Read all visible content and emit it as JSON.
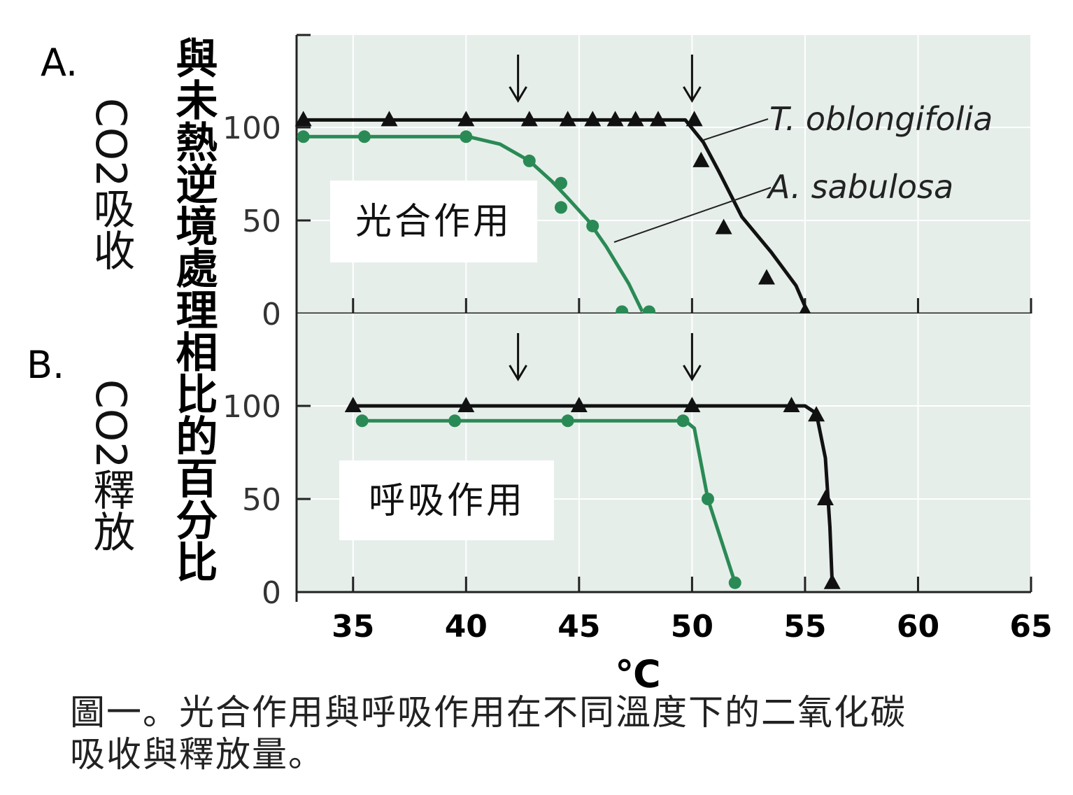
{
  "labels": {
    "panel_a": "A.",
    "panel_b": "B.",
    "ylabel_a": "CO2吸收",
    "ylabel_b": "CO2釋放",
    "ylabel_main": "與未熱逆境處理相比的百分比",
    "xlabel": "℃",
    "box_a": "光合作用",
    "box_b": "呼吸作用",
    "series_t": "T. oblongifolia",
    "series_a": "A. sabulosa"
  },
  "caption": {
    "line1": "圖一。光合作用與呼吸作用在不同溫度下的二氧化碳",
    "line2": "吸收與釋放量。"
  },
  "colors": {
    "plot_bg": "#e6eeea",
    "grid": "#ffffff",
    "black_series": "#111111",
    "green_series": "#2a8a55"
  },
  "chart_data": [
    {
      "type": "line",
      "panel": "A",
      "xlim": [
        32.5,
        65
      ],
      "ylim": [
        0,
        150
      ],
      "xticks": [
        35,
        40,
        45,
        50,
        55,
        60,
        65
      ],
      "yticks": [
        0,
        50,
        100
      ],
      "arrows_x": [
        42.3,
        50
      ],
      "series": [
        {
          "name": "T. oblongifolia",
          "marker": "triangle",
          "line": [
            [
              32.8,
              104
            ],
            [
              49.7,
              104
            ],
            [
              50.5,
              92
            ],
            [
              51.2,
              76
            ],
            [
              52.2,
              52
            ],
            [
              53.5,
              33
            ],
            [
              54.6,
              15
            ],
            [
              55.1,
              1
            ]
          ],
          "points": [
            [
              32.8,
              104
            ],
            [
              36.6,
              104
            ],
            [
              40,
              104
            ],
            [
              42.8,
              104
            ],
            [
              44.5,
              104
            ],
            [
              45.6,
              104
            ],
            [
              46.6,
              104
            ],
            [
              47.5,
              104
            ],
            [
              48.5,
              104
            ],
            [
              50.1,
              104
            ],
            [
              50.4,
              82
            ],
            [
              51.4,
              46
            ],
            [
              53.3,
              19
            ],
            [
              55.0,
              1
            ]
          ]
        },
        {
          "name": "A. sabulosa",
          "marker": "circle",
          "line": [
            [
              32.8,
              95
            ],
            [
              40.1,
              95
            ],
            [
              41.5,
              91
            ],
            [
              42.8,
              82
            ],
            [
              43.8,
              71
            ],
            [
              44.5,
              62
            ],
            [
              45.4,
              50
            ],
            [
              46.2,
              36
            ],
            [
              47.2,
              16
            ],
            [
              47.8,
              1
            ]
          ],
          "points": [
            [
              32.8,
              95
            ],
            [
              35.5,
              95
            ],
            [
              40,
              95
            ],
            [
              42.8,
              82
            ],
            [
              44.2,
              70
            ],
            [
              44.2,
              57
            ],
            [
              45.6,
              47
            ],
            [
              46.9,
              1
            ],
            [
              48.1,
              1
            ]
          ]
        }
      ]
    },
    {
      "type": "line",
      "panel": "B",
      "xlim": [
        32.5,
        65
      ],
      "ylim": [
        0,
        150
      ],
      "xticks": [
        35,
        40,
        45,
        50,
        55,
        60,
        65
      ],
      "yticks": [
        0,
        50,
        100
      ],
      "arrows_x": [
        42.3,
        50
      ],
      "series": [
        {
          "name": "T. oblongifolia",
          "marker": "triangle",
          "line": [
            [
              35,
              100
            ],
            [
              55,
              100
            ],
            [
              55.5,
              96
            ],
            [
              55.9,
              72
            ],
            [
              56.1,
              35
            ],
            [
              56.2,
              5
            ]
          ],
          "points": [
            [
              35,
              100
            ],
            [
              40,
              100
            ],
            [
              45,
              100
            ],
            [
              50,
              100
            ],
            [
              54.4,
              100
            ],
            [
              55.5,
              95
            ],
            [
              55.9,
              50
            ],
            [
              56.2,
              5
            ]
          ]
        },
        {
          "name": "A. sabulosa",
          "marker": "circle",
          "line": [
            [
              35.4,
              92
            ],
            [
              49.7,
              92
            ],
            [
              50.1,
              88
            ],
            [
              50.7,
              50
            ],
            [
              51.9,
              5
            ]
          ],
          "points": [
            [
              35.4,
              92
            ],
            [
              39.5,
              92
            ],
            [
              44.5,
              92
            ],
            [
              49.6,
              92
            ],
            [
              50.7,
              50
            ],
            [
              51.9,
              5
            ]
          ]
        }
      ]
    }
  ]
}
